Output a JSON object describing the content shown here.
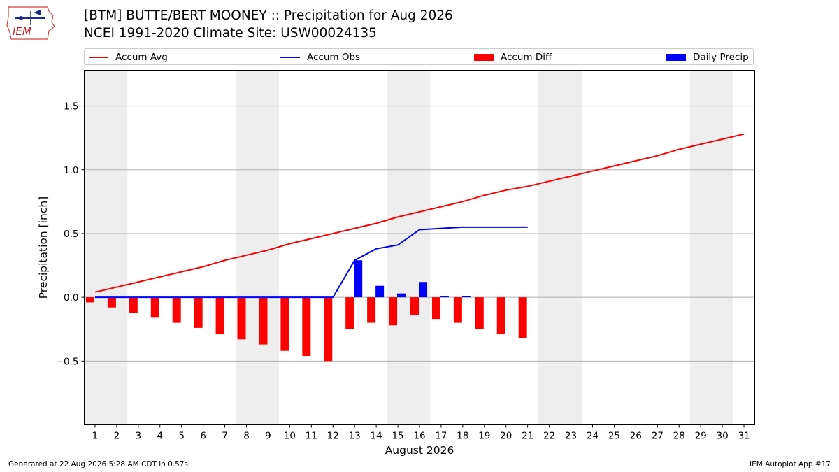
{
  "header": {
    "logo_text": "IEM",
    "title_line1": "[BTM] BUTTE/BERT MOONEY :: Precipitation for Aug 2026",
    "title_line2": "NCEI 1991-2020 Climate Site: USW00024135"
  },
  "legend": {
    "placement": "top",
    "items": [
      {
        "label": "Accum Avg",
        "color": "#ff0000",
        "kind": "line"
      },
      {
        "label": "Accum Obs",
        "color": "#0000ff",
        "kind": "line"
      },
      {
        "label": "Accum Diff",
        "color": "#ff0000",
        "kind": "bar"
      },
      {
        "label": "Daily Precip",
        "color": "#0000ff",
        "kind": "bar"
      }
    ]
  },
  "chart_data": {
    "type": "bar",
    "xlabel": "August 2026",
    "ylabel": "Precipitation [inch]",
    "xlim": [
      0.5,
      31.5
    ],
    "ylim": [
      -1.0,
      1.78
    ],
    "yticks": [
      -0.5,
      0.0,
      0.5,
      1.0,
      1.5
    ],
    "ytick_labels": [
      "−0.5",
      "0.0",
      "0.5",
      "1.0",
      "1.5"
    ],
    "xticks": [
      1,
      2,
      3,
      4,
      5,
      6,
      7,
      8,
      9,
      10,
      11,
      12,
      13,
      14,
      15,
      16,
      17,
      18,
      19,
      20,
      21,
      22,
      23,
      24,
      25,
      26,
      27,
      28,
      29,
      30,
      31
    ],
    "grid": "horizontal",
    "weekend_shading": [
      [
        0.5,
        2.5
      ],
      [
        7.5,
        9.5
      ],
      [
        14.5,
        16.5
      ],
      [
        21.5,
        23.5
      ],
      [
        28.5,
        30.5
      ]
    ],
    "weekend_color": "#eeeeee",
    "series": [
      {
        "name": "Accum Avg",
        "kind": "line",
        "color": "#ff0000",
        "x": [
          1,
          2,
          3,
          4,
          5,
          6,
          7,
          8,
          9,
          10,
          11,
          12,
          13,
          14,
          15,
          16,
          17,
          18,
          19,
          20,
          21,
          22,
          23,
          24,
          25,
          26,
          27,
          28,
          29,
          30,
          31
        ],
        "values": [
          0.04,
          0.08,
          0.12,
          0.16,
          0.2,
          0.24,
          0.29,
          0.33,
          0.37,
          0.42,
          0.46,
          0.5,
          0.54,
          0.58,
          0.63,
          0.67,
          0.71,
          0.75,
          0.8,
          0.84,
          0.87,
          0.91,
          0.95,
          0.99,
          1.03,
          1.07,
          1.11,
          1.16,
          1.2,
          1.24,
          1.28
        ]
      },
      {
        "name": "Accum Obs",
        "kind": "line",
        "color": "#0000ff",
        "x": [
          1,
          2,
          3,
          4,
          5,
          6,
          7,
          8,
          9,
          10,
          11,
          12,
          13,
          14,
          15,
          16,
          17,
          18,
          19,
          20,
          21
        ],
        "values": [
          0,
          0,
          0,
          0,
          0,
          0,
          0,
          0,
          0,
          0,
          0,
          0,
          0.29,
          0.38,
          0.41,
          0.53,
          0.54,
          0.55,
          0.55,
          0.55,
          0.55
        ]
      },
      {
        "name": "Accum Diff",
        "kind": "bar",
        "color": "#ff0000",
        "x": [
          1,
          2,
          3,
          4,
          5,
          6,
          7,
          8,
          9,
          10,
          11,
          12,
          13,
          14,
          15,
          16,
          17,
          18,
          19,
          20,
          21
        ],
        "values": [
          -0.04,
          -0.08,
          -0.12,
          -0.16,
          -0.2,
          -0.24,
          -0.29,
          -0.33,
          -0.37,
          -0.42,
          -0.46,
          -0.5,
          -0.25,
          -0.2,
          -0.22,
          -0.14,
          -0.17,
          -0.2,
          -0.25,
          -0.29,
          -0.32
        ]
      },
      {
        "name": "Daily Precip",
        "kind": "bar",
        "color": "#0000ff",
        "x": [
          1,
          2,
          3,
          4,
          5,
          6,
          7,
          8,
          9,
          10,
          11,
          12,
          13,
          14,
          15,
          16,
          17,
          18,
          19,
          20,
          21
        ],
        "values": [
          0,
          0,
          0,
          0,
          0,
          0,
          0,
          0,
          0,
          0,
          0,
          0,
          0.29,
          0.09,
          0.03,
          0.12,
          0.01,
          0.01,
          0,
          0,
          0
        ]
      }
    ]
  },
  "footer": {
    "generated": "Generated at 22 Aug 2026 5:28 AM CDT in 0.57s",
    "app": "IEM Autoplot App #17"
  }
}
